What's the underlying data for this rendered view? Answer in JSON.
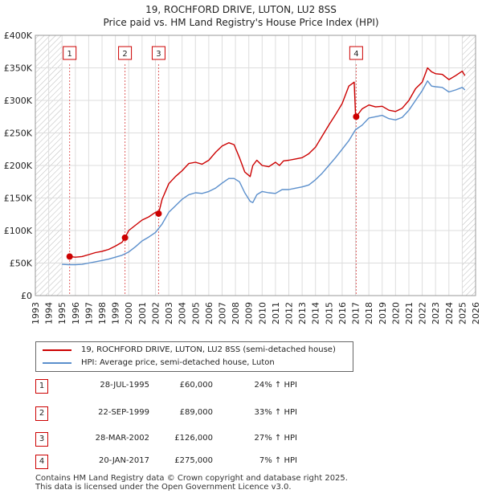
{
  "chart_data": {
    "type": "line",
    "title": "19, ROCHFORD DRIVE, LUTON, LU2 8SS",
    "subtitle": "Price paid vs. HM Land Registry's House Price Index (HPI)",
    "xlabel": "",
    "ylabel": "",
    "xlim": [
      1993,
      2026
    ],
    "ylim": [
      0,
      400000
    ],
    "grid": true,
    "y_ticks": [
      {
        "value": 0,
        "label": "£0"
      },
      {
        "value": 50000,
        "label": "£50K"
      },
      {
        "value": 100000,
        "label": "£100K"
      },
      {
        "value": 150000,
        "label": "£150K"
      },
      {
        "value": 200000,
        "label": "£200K"
      },
      {
        "value": 250000,
        "label": "£250K"
      },
      {
        "value": 300000,
        "label": "£300K"
      },
      {
        "value": 350000,
        "label": "£350K"
      },
      {
        "value": 400000,
        "label": "£400K"
      }
    ],
    "x_ticks": [
      "1993",
      "1994",
      "1995",
      "1996",
      "1997",
      "1998",
      "1999",
      "2000",
      "2001",
      "2002",
      "2003",
      "2004",
      "2005",
      "2006",
      "2007",
      "2008",
      "2009",
      "2010",
      "2011",
      "2012",
      "2013",
      "2014",
      "2015",
      "2016",
      "2017",
      "2018",
      "2019",
      "2020",
      "2021",
      "2022",
      "2023",
      "2024",
      "2025",
      "2026"
    ],
    "hatched_ranges": [
      [
        1993,
        1995.0
      ],
      [
        2025.0,
        2026
      ]
    ],
    "series": [
      {
        "name": "19, ROCHFORD DRIVE, LUTON, LU2 8SS (semi-detached house)",
        "color": "#cc0000",
        "x": [
          1995.57,
          1996.0,
          1996.5,
          1997.0,
          1997.5,
          1998.0,
          1998.5,
          1999.0,
          1999.5,
          1999.72,
          2000.0,
          2000.5,
          2001.0,
          2001.5,
          2002.0,
          2002.24,
          2002.5,
          2003.0,
          2003.5,
          2004.0,
          2004.5,
          2005.0,
          2005.5,
          2006.0,
          2006.5,
          2007.0,
          2007.5,
          2007.9,
          2008.3,
          2008.7,
          2009.1,
          2009.3,
          2009.6,
          2010.0,
          2010.5,
          2011.0,
          2011.3,
          2011.6,
          2012.0,
          2012.5,
          2013.0,
          2013.5,
          2014.0,
          2014.5,
          2015.0,
          2015.5,
          2016.0,
          2016.5,
          2016.9,
          2017.0,
          2017.05,
          2017.5,
          2018.0,
          2018.5,
          2019.0,
          2019.5,
          2020.0,
          2020.5,
          2021.0,
          2021.5,
          2022.0,
          2022.4,
          2022.7,
          2023.0,
          2023.5,
          2024.0,
          2024.5,
          2025.0,
          2025.2
        ],
        "values": [
          60000,
          59000,
          60000,
          63000,
          66000,
          68000,
          71000,
          76000,
          82000,
          89000,
          100000,
          108000,
          116000,
          121000,
          128000,
          126000,
          148000,
          172000,
          183000,
          192000,
          203000,
          205000,
          202000,
          208000,
          220000,
          230000,
          235000,
          232000,
          212000,
          190000,
          183000,
          200000,
          208000,
          200000,
          198000,
          205000,
          200000,
          207000,
          208000,
          210000,
          212000,
          218000,
          228000,
          245000,
          262000,
          278000,
          295000,
          322000,
          328000,
          280000,
          275000,
          287000,
          293000,
          290000,
          291000,
          285000,
          283000,
          288000,
          300000,
          318000,
          328000,
          350000,
          344000,
          341000,
          340000,
          332000,
          338000,
          345000,
          338000
        ]
      },
      {
        "name": "HPI: Average price, semi-detached house, Luton",
        "color": "#5b8fcc",
        "x": [
          1995.0,
          1995.5,
          1996.0,
          1996.5,
          1997.0,
          1997.5,
          1998.0,
          1998.5,
          1999.0,
          1999.5,
          2000.0,
          2000.5,
          2001.0,
          2001.5,
          2002.0,
          2002.5,
          2003.0,
          2003.5,
          2004.0,
          2004.5,
          2005.0,
          2005.5,
          2006.0,
          2006.5,
          2007.0,
          2007.5,
          2007.9,
          2008.3,
          2008.7,
          2009.1,
          2009.3,
          2009.6,
          2010.0,
          2010.5,
          2011.0,
          2011.5,
          2012.0,
          2012.5,
          2013.0,
          2013.5,
          2014.0,
          2014.5,
          2015.0,
          2015.5,
          2016.0,
          2016.5,
          2017.0,
          2017.5,
          2018.0,
          2018.5,
          2019.0,
          2019.5,
          2020.0,
          2020.5,
          2021.0,
          2021.5,
          2022.0,
          2022.4,
          2022.7,
          2023.0,
          2023.5,
          2024.0,
          2024.5,
          2025.0,
          2025.2
        ],
        "values": [
          48000,
          47500,
          47500,
          48000,
          50000,
          52000,
          54000,
          56000,
          59000,
          62000,
          67000,
          75000,
          84000,
          90000,
          97000,
          110000,
          128000,
          138000,
          148000,
          155000,
          158000,
          157000,
          160000,
          165000,
          173000,
          180000,
          180000,
          175000,
          158000,
          145000,
          143000,
          155000,
          160000,
          158000,
          157000,
          163000,
          163000,
          165000,
          167000,
          170000,
          178000,
          188000,
          200000,
          212000,
          225000,
          238000,
          255000,
          262000,
          273000,
          275000,
          277000,
          272000,
          270000,
          274000,
          285000,
          300000,
          315000,
          330000,
          322000,
          321000,
          320000,
          313000,
          316000,
          320000,
          316000
        ]
      }
    ],
    "sales": [
      {
        "num": "1",
        "x": 1995.57,
        "price": 60000
      },
      {
        "num": "2",
        "x": 1999.72,
        "price": 89000
      },
      {
        "num": "3",
        "x": 2002.24,
        "price": 126000
      },
      {
        "num": "4",
        "x": 2017.05,
        "price": 275000
      }
    ]
  },
  "legend": {
    "property_label": "19, ROCHFORD DRIVE, LUTON, LU2 8SS (semi-detached house)",
    "hpi_label": "HPI: Average price, semi-detached house, Luton",
    "property_color": "#cc0000",
    "hpi_color": "#5b8fcc"
  },
  "sales_table": [
    {
      "num": "1",
      "date": "28-JUL-1995",
      "price": "£60,000",
      "hpi": "24% ↑ HPI"
    },
    {
      "num": "2",
      "date": "22-SEP-1999",
      "price": "£89,000",
      "hpi": "33% ↑ HPI"
    },
    {
      "num": "3",
      "date": "28-MAR-2002",
      "price": "£126,000",
      "hpi": "27% ↑ HPI"
    },
    {
      "num": "4",
      "date": "20-JAN-2017",
      "price": "£275,000",
      "hpi": "7% ↑ HPI"
    }
  ],
  "footer": {
    "line1": "Contains HM Land Registry data © Crown copyright and database right 2025.",
    "line2": "This data is licensed under the Open Government Licence v3.0."
  }
}
